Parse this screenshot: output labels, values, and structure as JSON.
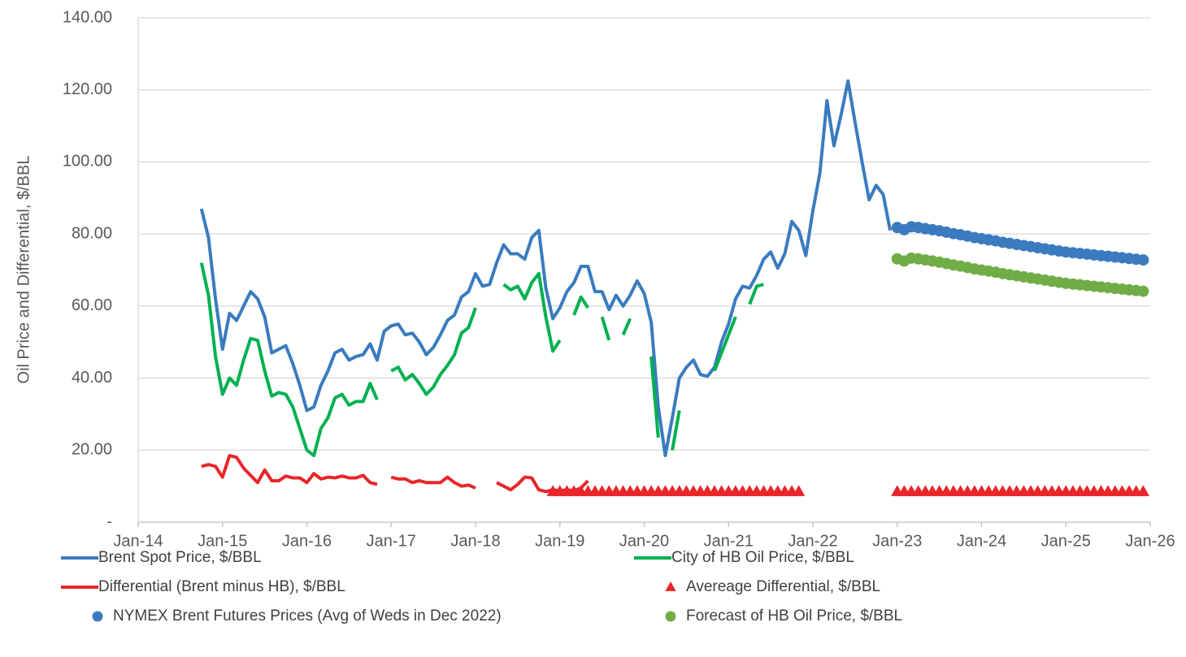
{
  "chart_data": {
    "type": "line",
    "y_label": "Oil Price and Differential, $/BBL",
    "xlim": [
      "2014-01",
      "2026-01"
    ],
    "xticks": [
      {
        "value": "2014-01",
        "label": "Jan-14"
      },
      {
        "value": "2015-01",
        "label": "Jan-15"
      },
      {
        "value": "2016-01",
        "label": "Jan-16"
      },
      {
        "value": "2017-01",
        "label": "Jan-17"
      },
      {
        "value": "2018-01",
        "label": "Jan-18"
      },
      {
        "value": "2019-01",
        "label": "Jan-19"
      },
      {
        "value": "2020-01",
        "label": "Jan-20"
      },
      {
        "value": "2021-01",
        "label": "Jan-21"
      },
      {
        "value": "2022-01",
        "label": "Jan-22"
      },
      {
        "value": "2023-01",
        "label": "Jan-23"
      },
      {
        "value": "2024-01",
        "label": "Jan-24"
      },
      {
        "value": "2025-01",
        "label": "Jan-25"
      },
      {
        "value": "2026-01",
        "label": "Jan-26"
      }
    ],
    "ylim": [
      0,
      140
    ],
    "yticks": [
      {
        "value": 0,
        "label": "-"
      },
      {
        "value": 20,
        "label": "20.00"
      },
      {
        "value": 40,
        "label": "40.00"
      },
      {
        "value": 60,
        "label": "60.00"
      },
      {
        "value": 80,
        "label": "80.00"
      },
      {
        "value": 100,
        "label": "100.00"
      },
      {
        "value": 120,
        "label": "120.00"
      },
      {
        "value": 140,
        "label": "140.00"
      }
    ],
    "grid": true,
    "legend": "bottom",
    "series": [
      {
        "name": "Brent Spot Price, $/BBL",
        "color": "#3a7bbf",
        "marker": "line",
        "x": [
          "2014-10",
          "2014-11",
          "2014-12",
          "2015-01",
          "2015-02",
          "2015-03",
          "2015-04",
          "2015-05",
          "2015-06",
          "2015-07",
          "2015-08",
          "2015-09",
          "2015-10",
          "2015-11",
          "2015-12",
          "2016-01",
          "2016-02",
          "2016-03",
          "2016-04",
          "2016-05",
          "2016-06",
          "2016-07",
          "2016-08",
          "2016-09",
          "2016-10",
          "2016-11",
          "2016-12",
          "2017-01",
          "2017-02",
          "2017-03",
          "2017-04",
          "2017-05",
          "2017-06",
          "2017-07",
          "2017-08",
          "2017-09",
          "2017-10",
          "2017-11",
          "2017-12",
          "2018-01",
          "2018-02",
          "2018-03",
          "2018-04",
          "2018-05",
          "2018-06",
          "2018-07",
          "2018-08",
          "2018-09",
          "2018-10",
          "2018-11",
          "2018-12",
          "2019-01",
          "2019-02",
          "2019-03",
          "2019-04",
          "2019-05",
          "2019-06",
          "2019-07",
          "2019-08",
          "2019-09",
          "2019-10",
          "2019-11",
          "2019-12",
          "2020-01",
          "2020-02",
          "2020-03",
          "2020-04",
          "2020-05",
          "2020-06",
          "2020-07",
          "2020-08",
          "2020-09",
          "2020-10",
          "2020-11",
          "2020-12",
          "2021-01",
          "2021-02",
          "2021-03",
          "2021-04",
          "2021-05",
          "2021-06",
          "2021-07",
          "2021-08",
          "2021-09",
          "2021-10",
          "2021-11",
          "2021-12",
          "2022-01",
          "2022-02",
          "2022-03",
          "2022-04",
          "2022-05",
          "2022-06",
          "2022-07",
          "2022-08",
          "2022-09",
          "2022-10",
          "2022-11",
          "2022-12"
        ],
        "values": [
          87,
          79,
          62,
          48,
          58,
          56,
          60,
          64,
          62,
          57,
          47,
          48,
          49,
          44,
          38,
          31,
          32,
          38,
          42,
          47,
          48,
          45,
          46,
          46.5,
          49.5,
          45,
          53,
          54.5,
          55,
          52,
          52.5,
          50,
          46.5,
          48.5,
          52,
          56,
          57.5,
          62.5,
          64,
          69,
          65.5,
          66,
          72,
          77,
          74.5,
          74.5,
          73,
          79,
          81,
          65,
          56.5,
          59.5,
          64,
          66.5,
          71,
          71,
          64,
          64,
          59,
          63,
          60,
          63,
          67,
          63.5,
          55.5,
          32,
          18.5,
          29,
          40,
          43,
          45,
          41,
          40.5,
          43,
          50,
          55,
          62,
          65.5,
          65,
          68.5,
          73,
          75,
          70.5,
          74.5,
          83.5,
          81,
          74,
          86.5,
          97,
          117,
          104.5,
          113,
          122.5,
          111,
          100,
          89.5,
          93.5,
          91,
          81
        ]
      },
      {
        "name": "City of HB Oil Price, $/BBL",
        "color": "#00b050",
        "marker": "line",
        "x": [
          "2014-10",
          "2014-11",
          "2014-12",
          "2015-01",
          "2015-02",
          "2015-03",
          "2015-04",
          "2015-05",
          "2015-06",
          "2015-07",
          "2015-08",
          "2015-09",
          "2015-10",
          "2015-11",
          "2015-12",
          "2016-01",
          "2016-02",
          "2016-03",
          "2016-04",
          "2016-05",
          "2016-06",
          "2016-07",
          "2016-08",
          "2016-09",
          "2016-10",
          "2016-11",
          "2016-12",
          "2017-01",
          "2017-02",
          "2017-03",
          "2017-04",
          "2017-05",
          "2017-06",
          "2017-07",
          "2017-08",
          "2017-09",
          "2017-10",
          "2017-11",
          "2017-12",
          "2018-01",
          "2018-02",
          "2018-03",
          "2018-04",
          "2018-05",
          "2018-06",
          "2018-07",
          "2018-08",
          "2018-09",
          "2018-10",
          "2018-11",
          "2018-12",
          "2019-01",
          "2019-02",
          "2019-03",
          "2019-04",
          "2019-05",
          "2019-06",
          "2019-07",
          "2019-08",
          "2019-09",
          "2019-10",
          "2019-11",
          "2019-12",
          "2020-01",
          "2020-02",
          "2020-03",
          "2020-04",
          "2020-05",
          "2020-06",
          "2020-07",
          "2020-08",
          "2020-09",
          "2020-10",
          "2020-11",
          "2020-12",
          "2021-01",
          "2021-02",
          "2021-03",
          "2021-04",
          "2021-05",
          "2021-06",
          "2021-07",
          "2021-08",
          "2021-09",
          "2021-10",
          "2021-11",
          "2021-12",
          "2022-01",
          "2022-02",
          "2022-03",
          "2022-04",
          "2022-05",
          "2022-06",
          "2022-07",
          "2022-08",
          "2022-09",
          "2022-10",
          "2022-11",
          "2022-12"
        ],
        "values": [
          72,
          63,
          46,
          35.5,
          40,
          38,
          45,
          51,
          50.5,
          42,
          35,
          36,
          35.5,
          32,
          26,
          20,
          18.5,
          26,
          29,
          34.5,
          35.5,
          32.5,
          33.5,
          33.5,
          38.5,
          34,
          null,
          42,
          43,
          39.5,
          41,
          38.5,
          35.5,
          37.5,
          41,
          43.5,
          46.5,
          52.5,
          54,
          59.5,
          null,
          null,
          null,
          66,
          64.5,
          65.5,
          62,
          66.5,
          69,
          57,
          47.5,
          50.5,
          null,
          57.5,
          62.5,
          59.5,
          null,
          57,
          50.5,
          null,
          52,
          56.5,
          null,
          null,
          46,
          23.5,
          null,
          20,
          31,
          null,
          null,
          null,
          null,
          42,
          47,
          52,
          57,
          null,
          60.5,
          65.5,
          66,
          null,
          null,
          null,
          null,
          null,
          null,
          null,
          null,
          null,
          null,
          null,
          null,
          null,
          null,
          null,
          null,
          null,
          null
        ]
      },
      {
        "name": "Differential (Brent minus HB), $/BBL",
        "color": "#e8262a",
        "marker": "line",
        "x": [
          "2014-10",
          "2014-11",
          "2014-12",
          "2015-01",
          "2015-02",
          "2015-03",
          "2015-04",
          "2015-05",
          "2015-06",
          "2015-07",
          "2015-08",
          "2015-09",
          "2015-10",
          "2015-11",
          "2015-12",
          "2016-01",
          "2016-02",
          "2016-03",
          "2016-04",
          "2016-05",
          "2016-06",
          "2016-07",
          "2016-08",
          "2016-09",
          "2016-10",
          "2016-11",
          "2016-12",
          "2017-01",
          "2017-02",
          "2017-03",
          "2017-04",
          "2017-05",
          "2017-06",
          "2017-07",
          "2017-08",
          "2017-09",
          "2017-10",
          "2017-11",
          "2017-12",
          "2018-01",
          "2018-02",
          "2018-03",
          "2018-04",
          "2018-05",
          "2018-06",
          "2018-07",
          "2018-08",
          "2018-09",
          "2018-10",
          "2018-11",
          "2018-12",
          "2019-01",
          "2019-02",
          "2019-03",
          "2019-04",
          "2019-05"
        ],
        "values": [
          15.5,
          16,
          15.5,
          12.5,
          18.5,
          18,
          15,
          13,
          11,
          14.5,
          11.5,
          11.5,
          12.8,
          12.3,
          12.3,
          11,
          13.5,
          12,
          12.5,
          12.3,
          12.8,
          12.3,
          12.3,
          13,
          11,
          10.5,
          null,
          12.5,
          12,
          12,
          11,
          11.5,
          11,
          11,
          11,
          12.5,
          11,
          10,
          10.3,
          9.5,
          null,
          null,
          11,
          10,
          9,
          10.5,
          12.5,
          12.3,
          9,
          8.5,
          9,
          8.7,
          9,
          8.7,
          9.5,
          11.5
        ]
      },
      {
        "name": "Avereage Differential, $/BBL",
        "color": "#e8262a",
        "marker": "triangle",
        "x": [
          "2018-12",
          "2019-01",
          "2019-02",
          "2019-03",
          "2019-04",
          "2019-05",
          "2019-06",
          "2019-07",
          "2019-08",
          "2019-09",
          "2019-10",
          "2019-11",
          "2019-12",
          "2020-01",
          "2020-02",
          "2020-03",
          "2020-04",
          "2020-05",
          "2020-06",
          "2020-07",
          "2020-08",
          "2020-09",
          "2020-10",
          "2020-11",
          "2020-12",
          "2021-01",
          "2021-02",
          "2021-03",
          "2021-04",
          "2021-05",
          "2021-06",
          "2021-07",
          "2021-08",
          "2021-09",
          "2021-10",
          "2021-11",
          "2023-01",
          "2023-02",
          "2023-03",
          "2023-04",
          "2023-05",
          "2023-06",
          "2023-07",
          "2023-08",
          "2023-09",
          "2023-10",
          "2023-11",
          "2023-12",
          "2024-01",
          "2024-02",
          "2024-03",
          "2024-04",
          "2024-05",
          "2024-06",
          "2024-07",
          "2024-08",
          "2024-09",
          "2024-10",
          "2024-11",
          "2024-12",
          "2025-01",
          "2025-02",
          "2025-03",
          "2025-04",
          "2025-05",
          "2025-06",
          "2025-07",
          "2025-08",
          "2025-09",
          "2025-10",
          "2025-11",
          "2025-12"
        ],
        "values": [
          8.5,
          8.5,
          8.5,
          8.5,
          8.5,
          8.5,
          8.5,
          8.5,
          8.5,
          8.5,
          8.5,
          8.5,
          8.5,
          8.5,
          8.5,
          8.5,
          8.5,
          8.5,
          8.5,
          8.5,
          8.5,
          8.5,
          8.5,
          8.5,
          8.5,
          8.5,
          8.5,
          8.5,
          8.5,
          8.5,
          8.5,
          8.5,
          8.5,
          8.5,
          8.5,
          8.5,
          8.5,
          8.5,
          8.5,
          8.5,
          8.5,
          8.5,
          8.5,
          8.5,
          8.5,
          8.5,
          8.5,
          8.5,
          8.5,
          8.5,
          8.5,
          8.5,
          8.5,
          8.5,
          8.5,
          8.5,
          8.5,
          8.5,
          8.5,
          8.5,
          8.5,
          8.5,
          8.5,
          8.5,
          8.5,
          8.5,
          8.5,
          8.5,
          8.5,
          8.5,
          8.5,
          8.5
        ]
      },
      {
        "name": "NYMEX Brent Futures Prices (Avg of Weds in Dec 2022)",
        "color": "#3a7bbf",
        "marker": "circle",
        "x": [
          "2023-01",
          "2023-02",
          "2023-03",
          "2023-04",
          "2023-05",
          "2023-06",
          "2023-07",
          "2023-08",
          "2023-09",
          "2023-10",
          "2023-11",
          "2023-12",
          "2024-01",
          "2024-02",
          "2024-03",
          "2024-04",
          "2024-05",
          "2024-06",
          "2024-07",
          "2024-08",
          "2024-09",
          "2024-10",
          "2024-11",
          "2024-12",
          "2025-01",
          "2025-02",
          "2025-03",
          "2025-04",
          "2025-05",
          "2025-06",
          "2025-07",
          "2025-08",
          "2025-09",
          "2025-10",
          "2025-11",
          "2025-12"
        ],
        "values": [
          81.8,
          81.2,
          82.0,
          81.8,
          81.5,
          81.2,
          80.9,
          80.5,
          80.1,
          79.8,
          79.4,
          79.0,
          78.7,
          78.4,
          78.1,
          77.7,
          77.4,
          77.1,
          76.8,
          76.5,
          76.2,
          75.9,
          75.6,
          75.3,
          75.0,
          74.8,
          74.6,
          74.4,
          74.2,
          74.0,
          73.8,
          73.6,
          73.4,
          73.2,
          73.0,
          72.8
        ]
      },
      {
        "name": "Forecast of HB Oil Price, $/BBL",
        "color": "#70ad47",
        "marker": "circle",
        "x": [
          "2023-01",
          "2023-02",
          "2023-03",
          "2023-04",
          "2023-05",
          "2023-06",
          "2023-07",
          "2023-08",
          "2023-09",
          "2023-10",
          "2023-11",
          "2023-12",
          "2024-01",
          "2024-02",
          "2024-03",
          "2024-04",
          "2024-05",
          "2024-06",
          "2024-07",
          "2024-08",
          "2024-09",
          "2024-10",
          "2024-11",
          "2024-12",
          "2025-01",
          "2025-02",
          "2025-03",
          "2025-04",
          "2025-05",
          "2025-06",
          "2025-07",
          "2025-08",
          "2025-09",
          "2025-10",
          "2025-11",
          "2025-12"
        ],
        "values": [
          73.1,
          72.5,
          73.3,
          73.1,
          72.8,
          72.5,
          72.2,
          71.8,
          71.4,
          71.1,
          70.7,
          70.3,
          70.0,
          69.7,
          69.4,
          69.0,
          68.7,
          68.4,
          68.1,
          67.8,
          67.5,
          67.2,
          66.9,
          66.6,
          66.3,
          66.1,
          65.9,
          65.7,
          65.5,
          65.3,
          65.1,
          64.9,
          64.7,
          64.5,
          64.3,
          64.1
        ]
      }
    ]
  }
}
